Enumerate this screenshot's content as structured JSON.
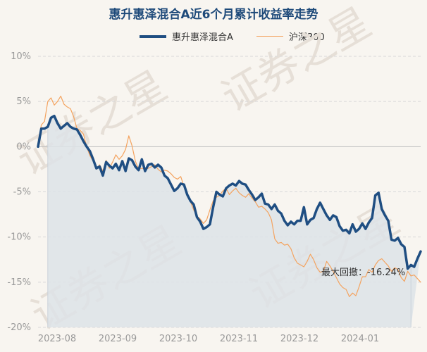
{
  "title": "惠升惠泽混合A近6个月累计收益率走势",
  "legend": {
    "fund": "惠升惠泽混合A",
    "index": "沪深300"
  },
  "watermark": "证券之星",
  "annotation": "最大回撤：-16.24%",
  "colors": {
    "fund": "#1f4e82",
    "index": "#f4a35f",
    "area": "#dde3e8",
    "grid": "#d8d8d8"
  },
  "chart_data": {
    "type": "line",
    "title": "惠升惠泽混合A近6个月累计收益率走势",
    "x_ticks": [
      "2023-08",
      "2023-09",
      "2023-10",
      "2023-11",
      "2023-12",
      "2024-01"
    ],
    "y_ticks": [
      "10%",
      "5%",
      "0%",
      "-5%",
      "-10%",
      "-15%",
      "-20%"
    ],
    "y_tick_values": [
      10,
      5,
      0,
      -5,
      -10,
      -15,
      -20
    ],
    "ylim": [
      -20,
      10
    ],
    "grid": true,
    "legend_position": "top-center",
    "series": [
      {
        "name": "惠升惠泽混合A",
        "values": [
          0,
          2.0,
          2.0,
          2.2,
          3.2,
          3.4,
          2.6,
          2.0,
          2.3,
          2.6,
          2.2,
          2.0,
          1.9,
          1.3,
          0.6,
          0,
          -0.5,
          -1.4,
          -2.4,
          -2.2,
          -3.2,
          -1.7,
          -2.1,
          -2.4,
          -1.9,
          -2.6,
          -1.6,
          -2.7,
          -1.3,
          -1.5,
          -2.2,
          -2.6,
          -1.4,
          -2.7,
          -2.0,
          -1.9,
          -2.3,
          -2.0,
          -2.3,
          -3.2,
          -3.5,
          -4.2,
          -4.9,
          -4.6,
          -4.1,
          -4.2,
          -5.3,
          -6.0,
          -6.4,
          -7.8,
          -8.3,
          -9.1,
          -8.9,
          -8.6,
          -6.7,
          -5.0,
          -5.3,
          -5.5,
          -4.6,
          -4.3,
          -4.1,
          -4.3,
          -3.8,
          -4.1,
          -4.2,
          -4.8,
          -5.3,
          -5.9,
          -5.6,
          -5.2,
          -6.3,
          -6.4,
          -6.9,
          -6.4,
          -7.1,
          -7.4,
          -8.2,
          -8.7,
          -8.3,
          -8.6,
          -8.2,
          -8.2,
          -6.7,
          -8.6,
          -8.1,
          -7.9,
          -6.9,
          -6.2,
          -6.9,
          -7.6,
          -8.1,
          -7.6,
          -7.8,
          -8.8,
          -9.3,
          -9.2,
          -9.6,
          -8.6,
          -9.4,
          -9.1,
          -8.5,
          -9.1,
          -8.4,
          -7.9,
          -5.4,
          -5.1,
          -6.9,
          -7.6,
          -8.2,
          -10.3,
          -10.4,
          -10.1,
          -10.8,
          -11.1,
          -13.5,
          -13.1,
          -13.3,
          -12.4,
          -11.6
        ]
      },
      {
        "name": "沪深300",
        "values": [
          0,
          2.4,
          2.8,
          5.0,
          5.4,
          4.6,
          5.0,
          5.6,
          4.7,
          4.4,
          4.2,
          3.3,
          2.0,
          1.8,
          1.4,
          0,
          -1.0,
          -1.6,
          -2.5,
          -2.0,
          -2.7,
          -1.5,
          -2.4,
          -1.7,
          -0.9,
          -1.4,
          -1.0,
          -0.3,
          1.2,
          0.1,
          -1.6,
          -2.5,
          -2.4,
          -2.5,
          -2.4,
          -2.2,
          -2.0,
          -2.5,
          -2.8,
          -2.6,
          -2.7,
          -3.0,
          -3.4,
          -3.6,
          -3.3,
          -4.4,
          -5.5,
          -6.1,
          -7.0,
          -7.7,
          -8.0,
          -8.5,
          -8.1,
          -7.0,
          -6.0,
          -5.6,
          -5.4,
          -4.9,
          -4.6,
          -5.3,
          -4.9,
          -4.6,
          -5.1,
          -5.4,
          -5.6,
          -5.2,
          -5.7,
          -6.1,
          -6.7,
          -6.6,
          -6.9,
          -7.3,
          -8.1,
          -10.2,
          -10.7,
          -10.6,
          -10.9,
          -10.8,
          -11.3,
          -12.3,
          -12.9,
          -13.1,
          -13.3,
          -12.7,
          -11.9,
          -12.5,
          -13.4,
          -13.9,
          -13.8,
          -12.7,
          -13.2,
          -13.8,
          -14.5,
          -15.2,
          -15.6,
          -15.8,
          -16.6,
          -16.2,
          -16.5,
          -15.5,
          -14.4,
          -14.4,
          -13.6,
          -13.9,
          -13.1,
          -12.6,
          -12.4,
          -12.8,
          -13.2,
          -13.8,
          -13.4,
          -13.6,
          -14.5,
          -14.9,
          -13.8,
          -14.3,
          -14.2,
          -14.6,
          -15.0
        ]
      }
    ]
  }
}
